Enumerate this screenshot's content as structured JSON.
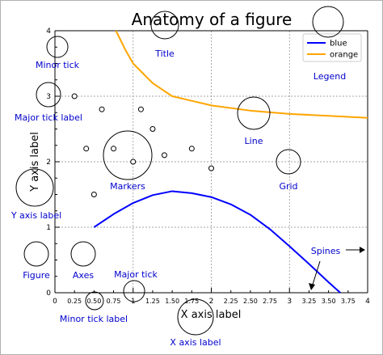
{
  "chart_data": {
    "type": "line",
    "title": "Anatomy of a figure",
    "xlabel": "X axis label",
    "ylabel": "Y axis label",
    "xlim": [
      0,
      4
    ],
    "ylim": [
      0,
      4
    ],
    "grid": true,
    "legend_position": "top-right",
    "major_xticks": [
      "0",
      "1",
      "2",
      "3",
      "4"
    ],
    "minor_xticks": [
      "0.25",
      "0.50",
      "0.75",
      "1.25",
      "1.50",
      "1.75",
      "2.25",
      "2.50",
      "2.75",
      "3.25",
      "3.50",
      "3.75"
    ],
    "major_yticks": [
      "0",
      "1",
      "2",
      "3",
      "4"
    ],
    "series": [
      {
        "name": "blue",
        "color": "#0000ff",
        "x": [
          0.5,
          0.75,
          1.0,
          1.25,
          1.5,
          1.75,
          2.0,
          2.25,
          2.5,
          2.75,
          3.0,
          3.25,
          3.5,
          3.65
        ],
        "y": [
          1.0,
          1.2,
          1.37,
          1.49,
          1.55,
          1.52,
          1.46,
          1.35,
          1.19,
          0.97,
          0.71,
          0.44,
          0.16,
          0.0
        ]
      },
      {
        "name": "orange",
        "color": "#ffa500",
        "x": [
          0.78,
          0.9,
          1.0,
          1.25,
          1.5,
          1.75,
          2.0,
          2.5,
          3.0,
          3.5,
          4.0
        ],
        "y": [
          4.0,
          3.71,
          3.5,
          3.2,
          3.0,
          2.93,
          2.86,
          2.78,
          2.73,
          2.7,
          2.67
        ]
      },
      {
        "name": "markers",
        "type": "scatter",
        "color": "#000000",
        "x": [
          0.25,
          0.4,
          0.5,
          0.6,
          0.75,
          1.0,
          1.1,
          1.25,
          1.4,
          1.75,
          2.0
        ],
        "y": [
          3.0,
          2.2,
          1.5,
          2.8,
          2.2,
          2.0,
          2.8,
          2.5,
          2.1,
          2.2,
          1.9
        ]
      }
    ],
    "annotations": [
      {
        "label": "Minor tick",
        "x": 0.02,
        "y": 3.75
      },
      {
        "label": "Title",
        "x": 1.4,
        "y": 4.1
      },
      {
        "label": "Legend",
        "x": 3.5,
        "y": 3.6
      },
      {
        "label": "Major tick label",
        "x": -0.1,
        "y": 3.0
      },
      {
        "label": "Line",
        "x": 2.55,
        "y": 2.75
      },
      {
        "label": "Markers",
        "x": 0.9,
        "y": 2.1
      },
      {
        "label": "Grid",
        "x": 3.0,
        "y": 2.0
      },
      {
        "label": "Y axis label",
        "x": -0.3,
        "y": 1.6
      },
      {
        "label": "Figure",
        "x": -0.3,
        "y": 0.6
      },
      {
        "label": "Axes",
        "x": 0.35,
        "y": 0.6
      },
      {
        "label": "Major tick",
        "x": 1.0,
        "y": 0.0
      },
      {
        "label": "Minor tick label",
        "x": 0.5,
        "y": -0.1
      },
      {
        "label": "X axis label",
        "x": 1.8,
        "y": -0.4
      },
      {
        "label": "Spines",
        "x": 3.7,
        "y": 0.65
      }
    ]
  },
  "theme": {
    "annotation_color": "#0000cc",
    "grid_color": "#888888",
    "background": "#ffffff"
  }
}
